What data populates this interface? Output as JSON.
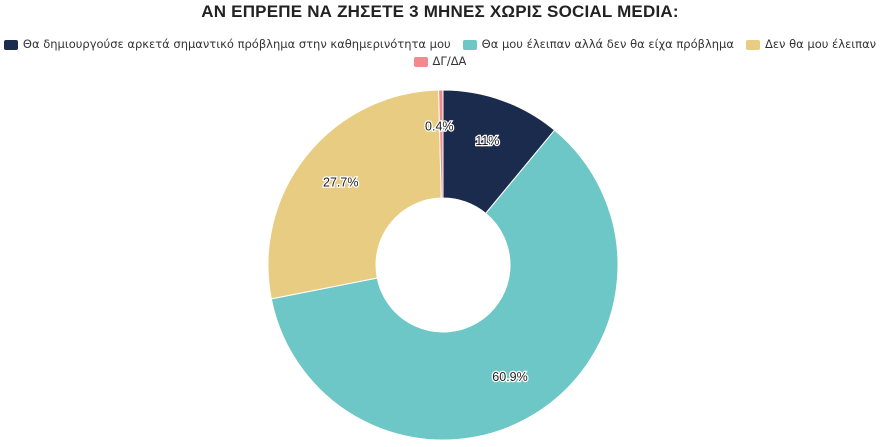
{
  "chart_data": {
    "type": "pie",
    "title": "ΑΝ ΕΠΡΕΠΕ ΝΑ ΖΗΣΕΤΕ 3 ΜΗΝΕΣ ΧΩΡΙΣ SOCIAL MEDIA:",
    "legend_position": "top",
    "donut": true,
    "slices": [
      {
        "label": "Θα δημιουργούσε αρκετά σημαντικό πρόβλημα στην καθημερινότητα μου",
        "value": 11,
        "display": "11%",
        "color": "#1a2b4e"
      },
      {
        "label": "Θα μου έλειπαν αλλά δεν θα είχα πρόβλημα",
        "value": 60.9,
        "display": "60.9%",
        "color": "#6cc7c6"
      },
      {
        "label": "Δεν θα μου έλειπαν",
        "value": 27.7,
        "display": "27.7%",
        "color": "#e8cc81"
      },
      {
        "label": "ΔΓ/ΔΑ",
        "value": 0.4,
        "display": "0.4%",
        "color": "#f08a8e"
      }
    ]
  }
}
